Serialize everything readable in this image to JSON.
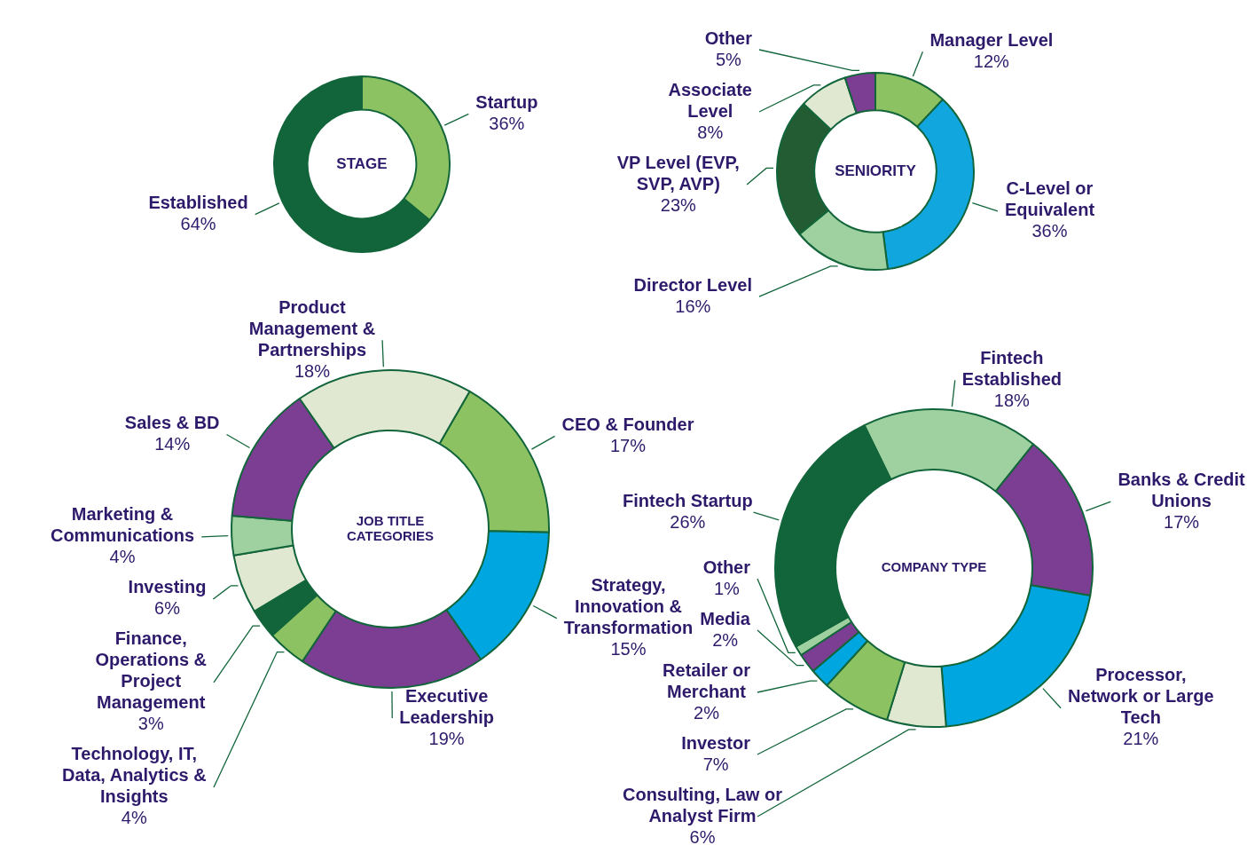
{
  "chart_data": [
    {
      "type": "donut",
      "title": "STAGE",
      "categories": [
        "Startup",
        "Established"
      ],
      "values": [
        36,
        64
      ],
      "colors": [
        "#8dc263",
        "#12653a"
      ],
      "value_labels": [
        "36%",
        "64%"
      ]
    },
    {
      "type": "donut",
      "title": "SENIORITY",
      "categories": [
        "Manager Level",
        "C-Level or Equivalent",
        "Director Level",
        "VP Level (EVP, SVP, AVP)",
        "Associate Level",
        "Other"
      ],
      "values": [
        12,
        36,
        16,
        23,
        8,
        5
      ],
      "colors": [
        "#8dc263",
        "#12a6df",
        "#9fd09f",
        "#235c32",
        "#e0e8d2",
        "#7b3e92"
      ],
      "value_labels": [
        "12%",
        "36%",
        "16%",
        "23%",
        "8%",
        "5%"
      ]
    },
    {
      "type": "donut",
      "title": "JOB TITLE CATEGORIES",
      "categories": [
        "CEO & Founder",
        "Strategy, Innovation & Transformation",
        "Executive Leadership",
        "Technology, IT, Data, Analytics & Insights",
        "Finance, Operations & Project Management",
        "Investing",
        "Marketing & Communications",
        "Sales & BD",
        "Product Management & Partnerships"
      ],
      "values": [
        17,
        15,
        19,
        4,
        3,
        6,
        4,
        14,
        18
      ],
      "colors": [
        "#8dc263",
        "#00a6df",
        "#7b3e92",
        "#8dc263",
        "#12653a",
        "#e0e8d2",
        "#9fd09f",
        "#7b3e92",
        "#e0e8d2"
      ],
      "value_labels": [
        "17%",
        "15%",
        "19%",
        "4%",
        "3%",
        "6%",
        "4%",
        "14%",
        "18%"
      ]
    },
    {
      "type": "donut",
      "title": "COMPANY TYPE",
      "categories": [
        "Fintech Established",
        "Banks & Credit Unions",
        "Processor, Network or Large Tech",
        "Consulting, Law or Analyst Firm",
        "Investor",
        "Retailer or Merchant",
        "Media",
        "Other",
        "Fintech Startup"
      ],
      "values": [
        18,
        17,
        21,
        6,
        7,
        2,
        2,
        1,
        26
      ],
      "colors": [
        "#9fd09f",
        "#7b3e92",
        "#00a6df",
        "#e0e8d2",
        "#8dc263",
        "#00a6df",
        "#7b3e92",
        "#9fd09f",
        "#12653a"
      ],
      "value_labels": [
        "18%",
        "17%",
        "21%",
        "6%",
        "7%",
        "2%",
        "2%",
        "1%",
        "26%"
      ]
    }
  ]
}
